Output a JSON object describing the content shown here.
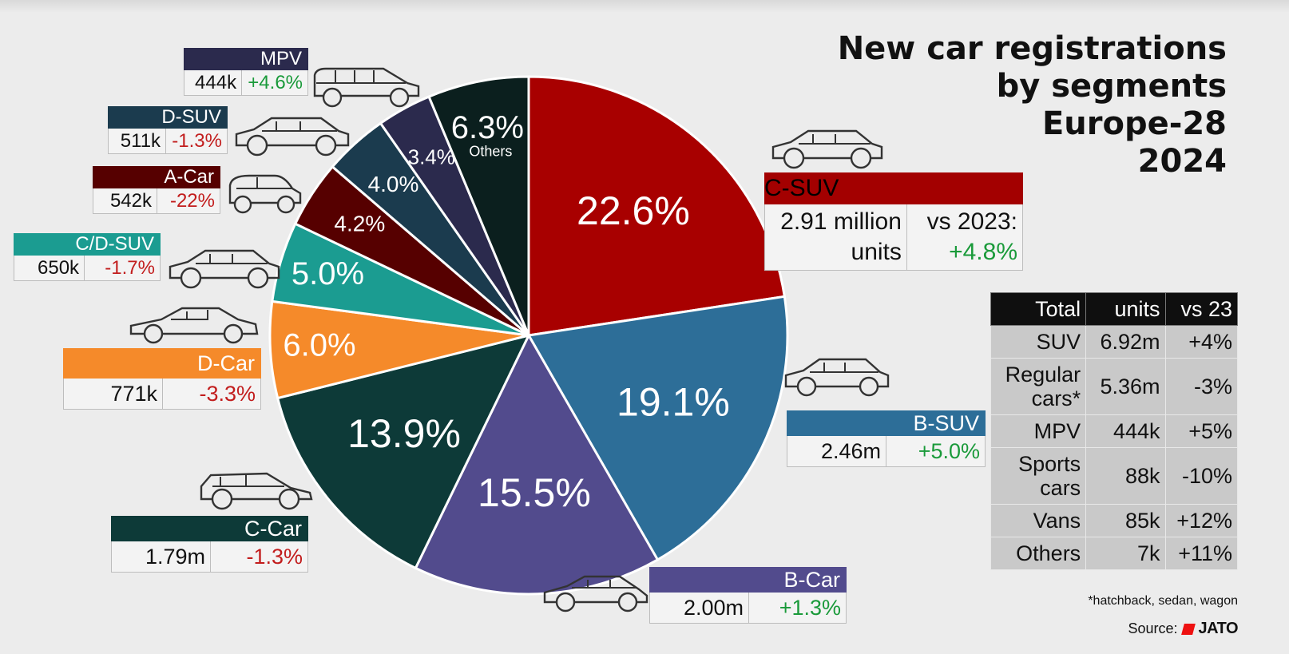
{
  "title_lines": [
    "New car registrations",
    "by segments",
    "Europe-28",
    "2024"
  ],
  "chart_data": {
    "type": "pie",
    "title": "New car registrations by segments Europe-28 2024",
    "slices": [
      {
        "label": "C-SUV",
        "percent": 22.6,
        "pct_label": "22.6%",
        "color": "#a80000",
        "units": "2.91 million units",
        "change": "+4.8%"
      },
      {
        "label": "B-SUV",
        "percent": 19.1,
        "pct_label": "19.1%",
        "color": "#2d6e98",
        "units": "2.46m",
        "change": "+5.0%"
      },
      {
        "label": "B-Car",
        "percent": 15.5,
        "pct_label": "15.5%",
        "color": "#524b8d",
        "units": "2.00m",
        "change": "+1.3%"
      },
      {
        "label": "C-Car",
        "percent": 13.9,
        "pct_label": "13.9%",
        "color": "#0d3a38",
        "units": "1.79m",
        "change": "-1.3%"
      },
      {
        "label": "D-Car",
        "percent": 6.0,
        "pct_label": "6.0%",
        "color": "#f58a2a",
        "units": "771k",
        "change": "-3.3%"
      },
      {
        "label": "C/D-SUV",
        "percent": 5.0,
        "pct_label": "5.0%",
        "color": "#1b9c91",
        "units": "650k",
        "change": "-1.7%"
      },
      {
        "label": "A-Car",
        "percent": 4.2,
        "pct_label": "4.2%",
        "color": "#560000",
        "units": "542k",
        "change": "-22%"
      },
      {
        "label": "D-SUV",
        "percent": 4.0,
        "pct_label": "4.0%",
        "color": "#1b3b4e",
        "units": "511k",
        "change": "-1.3%"
      },
      {
        "label": "MPV",
        "percent": 3.4,
        "pct_label": "3.4%",
        "color": "#2b2a4d",
        "units": "444k",
        "change": "+4.6%"
      },
      {
        "label": "Others",
        "percent": 6.3,
        "pct_label": "6.3%",
        "color": "#0b1f1e",
        "units": "",
        "change": ""
      }
    ]
  },
  "cards": {
    "csuv": {
      "name": "C-SUV",
      "units_l1": "2.91 million",
      "units_l2": "units",
      "vs_l1": "vs 2023:",
      "vs_l2": "+4.8%"
    },
    "bsuv": {
      "name": "B-SUV",
      "units": "2.46m",
      "change": "+5.0%"
    },
    "bcar": {
      "name": "B-Car",
      "units": "2.00m",
      "change": "+1.3%"
    },
    "ccar": {
      "name": "C-Car",
      "units": "1.79m",
      "change": "-1.3%"
    },
    "dcar": {
      "name": "D-Car",
      "units": "771k",
      "change": "-3.3%"
    },
    "cdsuv": {
      "name": "C/D-SUV",
      "units": "650k",
      "change": "-1.7%"
    },
    "acar": {
      "name": "A-Car",
      "units": "542k",
      "change": "-22%"
    },
    "dsuv": {
      "name": "D-SUV",
      "units": "511k",
      "change": "-1.3%"
    },
    "mpv": {
      "name": "MPV",
      "units": "444k",
      "change": "+4.6%"
    }
  },
  "summary": {
    "headers": [
      "Total",
      "units",
      "vs 23"
    ],
    "rows": [
      {
        "label": "SUV",
        "units": "6.92m",
        "change": "+4%"
      },
      {
        "label": "Regular cars*",
        "units": "5.36m",
        "change": "-3%"
      },
      {
        "label": "MPV",
        "units": "444k",
        "change": "+5%"
      },
      {
        "label": "Sports cars",
        "units": "88k",
        "change": "-10%"
      },
      {
        "label": "Vans",
        "units": "85k",
        "change": "+12%"
      },
      {
        "label": "Others",
        "units": "7k",
        "change": "+11%"
      }
    ]
  },
  "footnote": "*hatchback, sedan, wagon",
  "source_label": "Source:",
  "source_brand": "JATO",
  "icons": [
    "suv-icon",
    "hatchback-icon",
    "mpv-icon",
    "city-car-icon",
    "sedan-icon"
  ]
}
